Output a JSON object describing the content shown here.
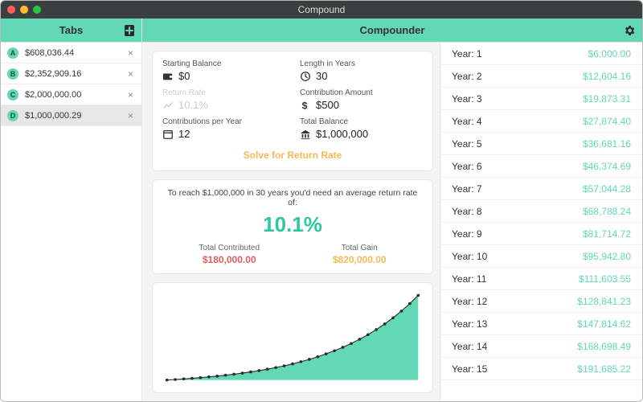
{
  "colors": {
    "accent": "#62d8b6",
    "accent_text": "#2fc79d",
    "orange": "#f7b955",
    "red": "#e85c5c",
    "titlebar": "#3b3f3f",
    "close": "#ff5f57",
    "min": "#febc2e",
    "max": "#28c840"
  },
  "window": {
    "title": "Compound"
  },
  "sidebar": {
    "title": "Tabs",
    "items": [
      {
        "badge": "A",
        "label": "$608,036.44"
      },
      {
        "badge": "B",
        "label": "$2,352,909.16"
      },
      {
        "badge": "C",
        "label": "$2,000,000.00"
      },
      {
        "badge": "D",
        "label": "$1,000,000.29"
      }
    ],
    "selected_index": 3
  },
  "main": {
    "title": "Compounder",
    "inputs": {
      "starting_balance": {
        "label": "Starting Balance",
        "value": "$0"
      },
      "length_years": {
        "label": "Length in Years",
        "value": "30"
      },
      "return_rate": {
        "label": "Return Rate",
        "value": "10.1%",
        "disabled": true
      },
      "contribution_amount": {
        "label": "Contribution Amount",
        "value": "$500"
      },
      "contrib_per_year": {
        "label": "Contributions per Year",
        "value": "12"
      },
      "total_balance": {
        "label": "Total Balance",
        "value": "$1,000,000"
      },
      "solve_label": "Solve for Return Rate"
    },
    "result": {
      "sentence": "To reach $1,000,000 in 30 years you'd need an average return rate of:",
      "pct": "10.1%",
      "contributed_label": "Total Contributed",
      "contributed_value": "$180,000.00",
      "gain_label": "Total Gain",
      "gain_value": "$820,000.00"
    },
    "chart": {
      "type": "area",
      "n_points": 31,
      "fill_color": "#62d8b6",
      "line_color": "#2b2b2b",
      "marker_color": "#2b2b2b",
      "background_color": "#ffffff",
      "growth_rate": 0.101
    },
    "years": [
      {
        "label": "Year: 1",
        "value": "$6,000.00"
      },
      {
        "label": "Year: 2",
        "value": "$12,604.16"
      },
      {
        "label": "Year: 3",
        "value": "$19,873.31"
      },
      {
        "label": "Year: 4",
        "value": "$27,874.40"
      },
      {
        "label": "Year: 5",
        "value": "$36,681.16"
      },
      {
        "label": "Year: 6",
        "value": "$46,374.69"
      },
      {
        "label": "Year: 7",
        "value": "$57,044.28"
      },
      {
        "label": "Year: 8",
        "value": "$68,788.24"
      },
      {
        "label": "Year: 9",
        "value": "$81,714.72"
      },
      {
        "label": "Year: 10",
        "value": "$95,942.80"
      },
      {
        "label": "Year: 11",
        "value": "$111,603.55"
      },
      {
        "label": "Year: 12",
        "value": "$128,841.23"
      },
      {
        "label": "Year: 13",
        "value": "$147,814.62"
      },
      {
        "label": "Year: 14",
        "value": "$168,698.49"
      },
      {
        "label": "Year: 15",
        "value": "$191,685.22"
      }
    ]
  }
}
